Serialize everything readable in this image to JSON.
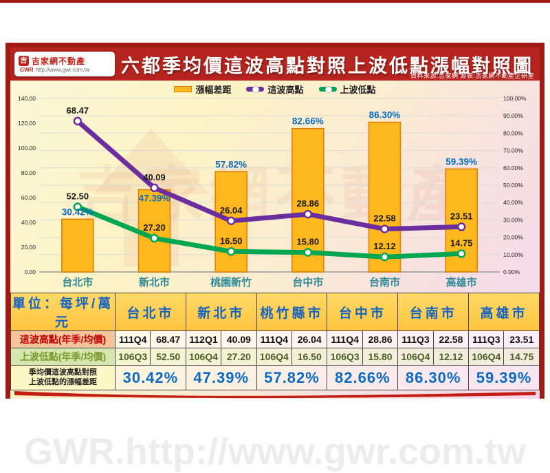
{
  "page": {
    "title": "六都季均價這波高點對照上波低點漲幅對照圖",
    "source_note": "資料來源:吉家網  製表:吉家網不動產企研室",
    "logo": {
      "name": "吉家網不動產",
      "abbr": "GWR",
      "url": "http://www.gwr.com.tw",
      "glyph": "吉"
    },
    "watermark": {
      "text": "吉家網不動產",
      "url_text": "GWR.http://www.gwr.com.tw"
    }
  },
  "colors": {
    "title_red": "#b5241e",
    "frame_border": "#a01b14",
    "bar_fill": "#ffb81e",
    "bar_border": "#e07a00",
    "line_high": "#6b2e9e",
    "line_low": "#00a651",
    "pct_label_blue": "#0b6bc2",
    "city_label_teal": "#2e8b99",
    "swoosh_red": "#c21e14"
  },
  "chart_data": {
    "type": "combo",
    "categories": [
      "台北市",
      "新北市",
      "桃園新竹",
      "台中市",
      "台南市",
      "高雄市"
    ],
    "series": [
      {
        "name": "漲幅差距",
        "type": "bar",
        "axis": "right",
        "values": [
          30.42,
          47.39,
          57.82,
          82.66,
          86.3,
          59.39
        ],
        "value_suffix": "%",
        "color": "#ffb81e",
        "border": "#e07a00",
        "label_color": "#0b6bc2"
      },
      {
        "name": "這波高點",
        "type": "line",
        "axis": "left",
        "values": [
          68.47,
          40.09,
          26.04,
          28.86,
          22.58,
          23.51
        ],
        "color": "#6b2e9e",
        "plot_scale": {
          "min": 4.3,
          "max": 78.1
        }
      },
      {
        "name": "上波低點",
        "type": "line",
        "axis": "left",
        "values": [
          52.5,
          27.2,
          16.5,
          15.8,
          12.12,
          14.75
        ],
        "color": "#00a651",
        "plot_scale": {
          "min": 0,
          "max": 140
        }
      }
    ],
    "left_axis": {
      "min": 0,
      "max": 140,
      "step": 20,
      "decimals": 2
    },
    "right_axis": {
      "min": 0,
      "max": 100,
      "step": 10,
      "suffix": "%",
      "decimals": 2
    },
    "legend_position": "top-center",
    "grid": true
  },
  "table": {
    "unit_header": "單位：每坪/萬元",
    "cities": [
      "台北市",
      "新北市",
      "桃竹縣市",
      "台中市",
      "台南市",
      "高雄市"
    ],
    "rows": [
      {
        "label": "這波高點(年季/均價)",
        "quarters": [
          "111Q4",
          "112Q1",
          "111Q4",
          "111Q4",
          "111Q3",
          "111Q3"
        ],
        "prices": [
          "68.47",
          "40.09",
          "26.04",
          "28.86",
          "22.58",
          "23.51"
        ]
      },
      {
        "label": "上波低點(年季/均價)",
        "quarters": [
          "106Q3",
          "106Q4",
          "106Q4",
          "106Q3",
          "106Q4",
          "106Q4"
        ],
        "prices": [
          "52.50",
          "27.20",
          "16.50",
          "15.80",
          "12.12",
          "14.75"
        ]
      }
    ],
    "growth_row": {
      "label_line1": "季均價這波高點對照",
      "label_line2": "上波低點的漲幅差距",
      "values": [
        "30.42%",
        "47.39%",
        "57.82%",
        "82.66%",
        "86.30%",
        "59.39%"
      ]
    }
  }
}
